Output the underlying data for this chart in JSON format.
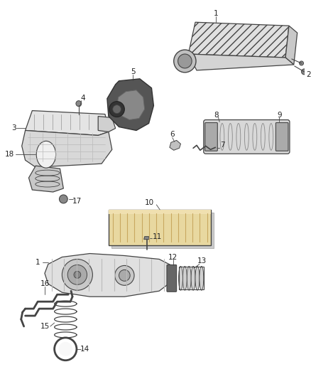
{
  "background_color": "#ffffff",
  "line_color": "#444444",
  "figsize": [
    4.38,
    5.33
  ],
  "dpi": 100
}
